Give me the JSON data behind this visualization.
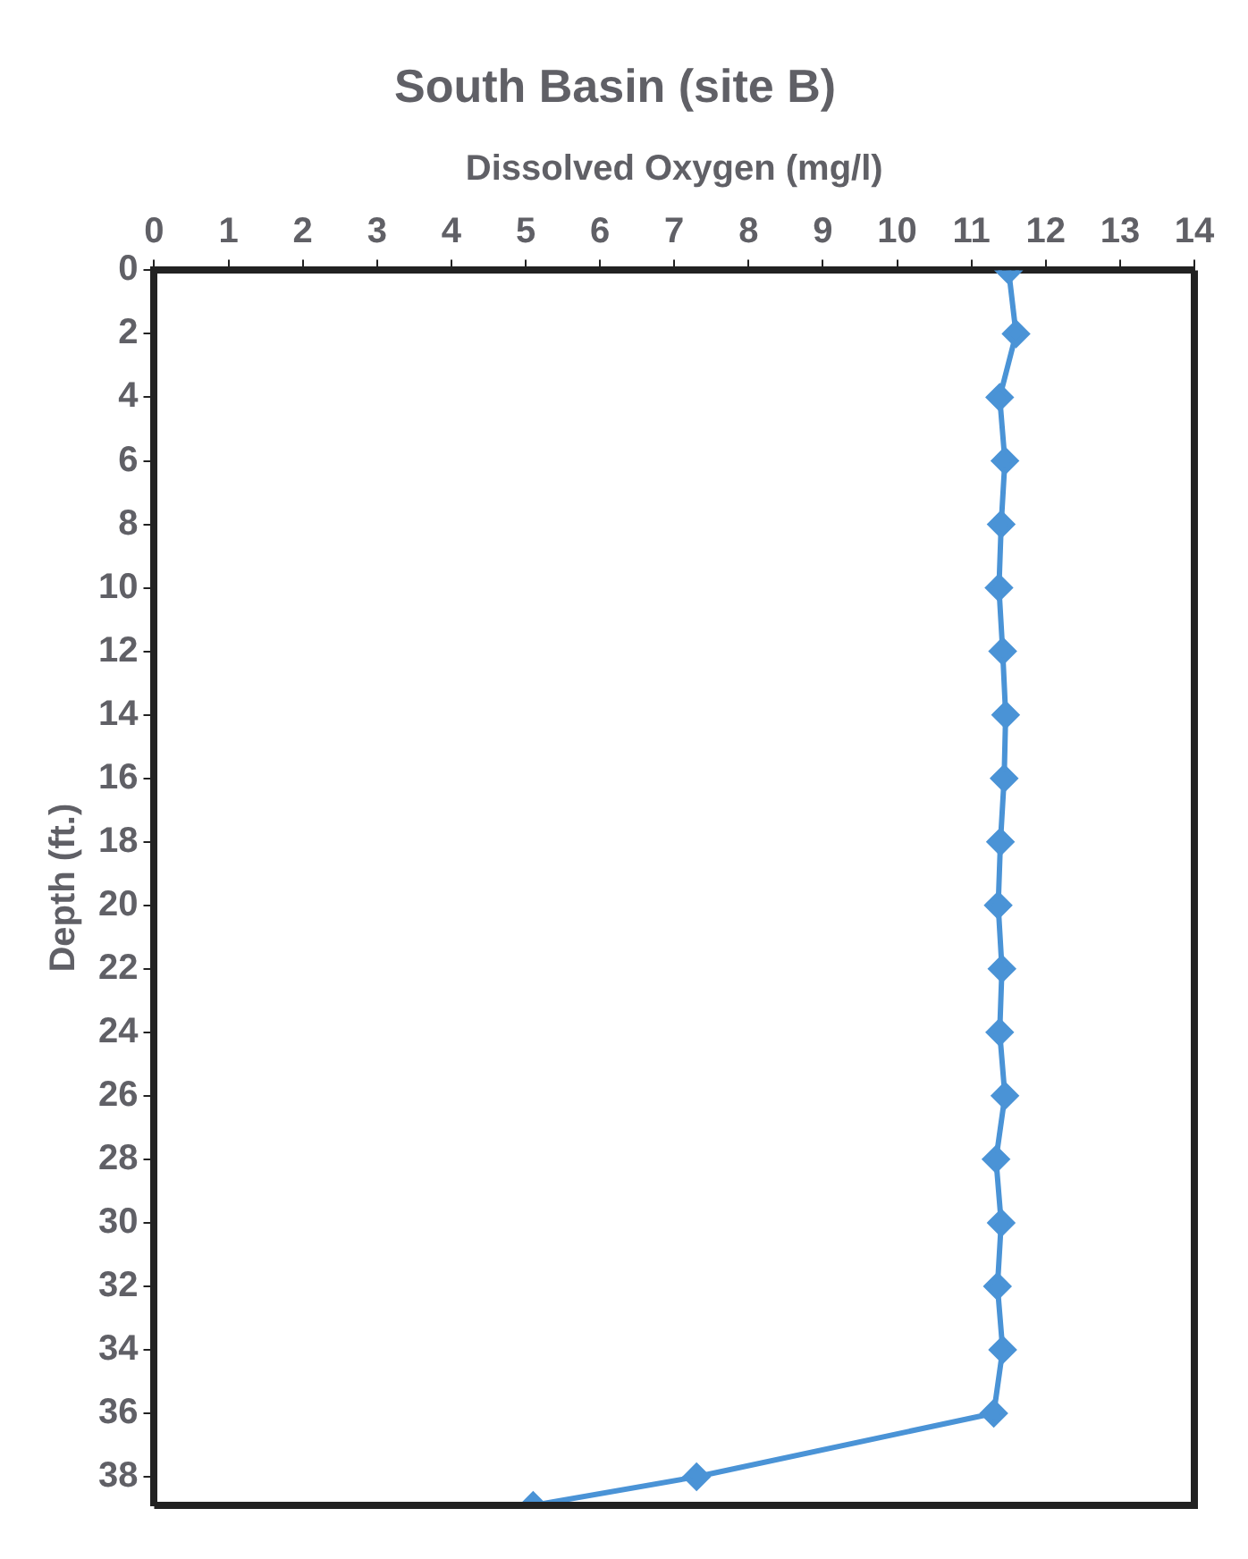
{
  "chart_data": {
    "type": "line",
    "title": "South Basin (site B)",
    "xlabel": "Dissolved Oxygen (mg/l)",
    "ylabel": "Depth (ft.)",
    "series": [
      {
        "color": "#4a93d6",
        "x": [
          11.5,
          11.6,
          11.38,
          11.45,
          11.4,
          11.37,
          11.42,
          11.46,
          11.44,
          11.39,
          11.36,
          11.41,
          11.38,
          11.45,
          11.33,
          11.4,
          11.35,
          11.42,
          11.3,
          7.3,
          5.1
        ],
        "values": [
          0,
          2,
          4,
          6,
          8,
          10,
          12,
          14,
          16,
          18,
          20,
          22,
          24,
          26,
          28,
          30,
          32,
          34,
          36,
          38,
          38.9
        ]
      }
    ],
    "xlim": [
      0,
      14
    ],
    "xticks": [
      0,
      1,
      2,
      3,
      4,
      5,
      6,
      7,
      8,
      9,
      10,
      11,
      12,
      13,
      14
    ],
    "ylim": [
      38.9,
      0
    ],
    "yticks": [
      0,
      2,
      4,
      6,
      8,
      10,
      12,
      14,
      16,
      18,
      20,
      22,
      24,
      26,
      28,
      30,
      32,
      34,
      36,
      38
    ],
    "grid": false,
    "legend": false,
    "marker": "diamond",
    "line_style": "solid"
  }
}
